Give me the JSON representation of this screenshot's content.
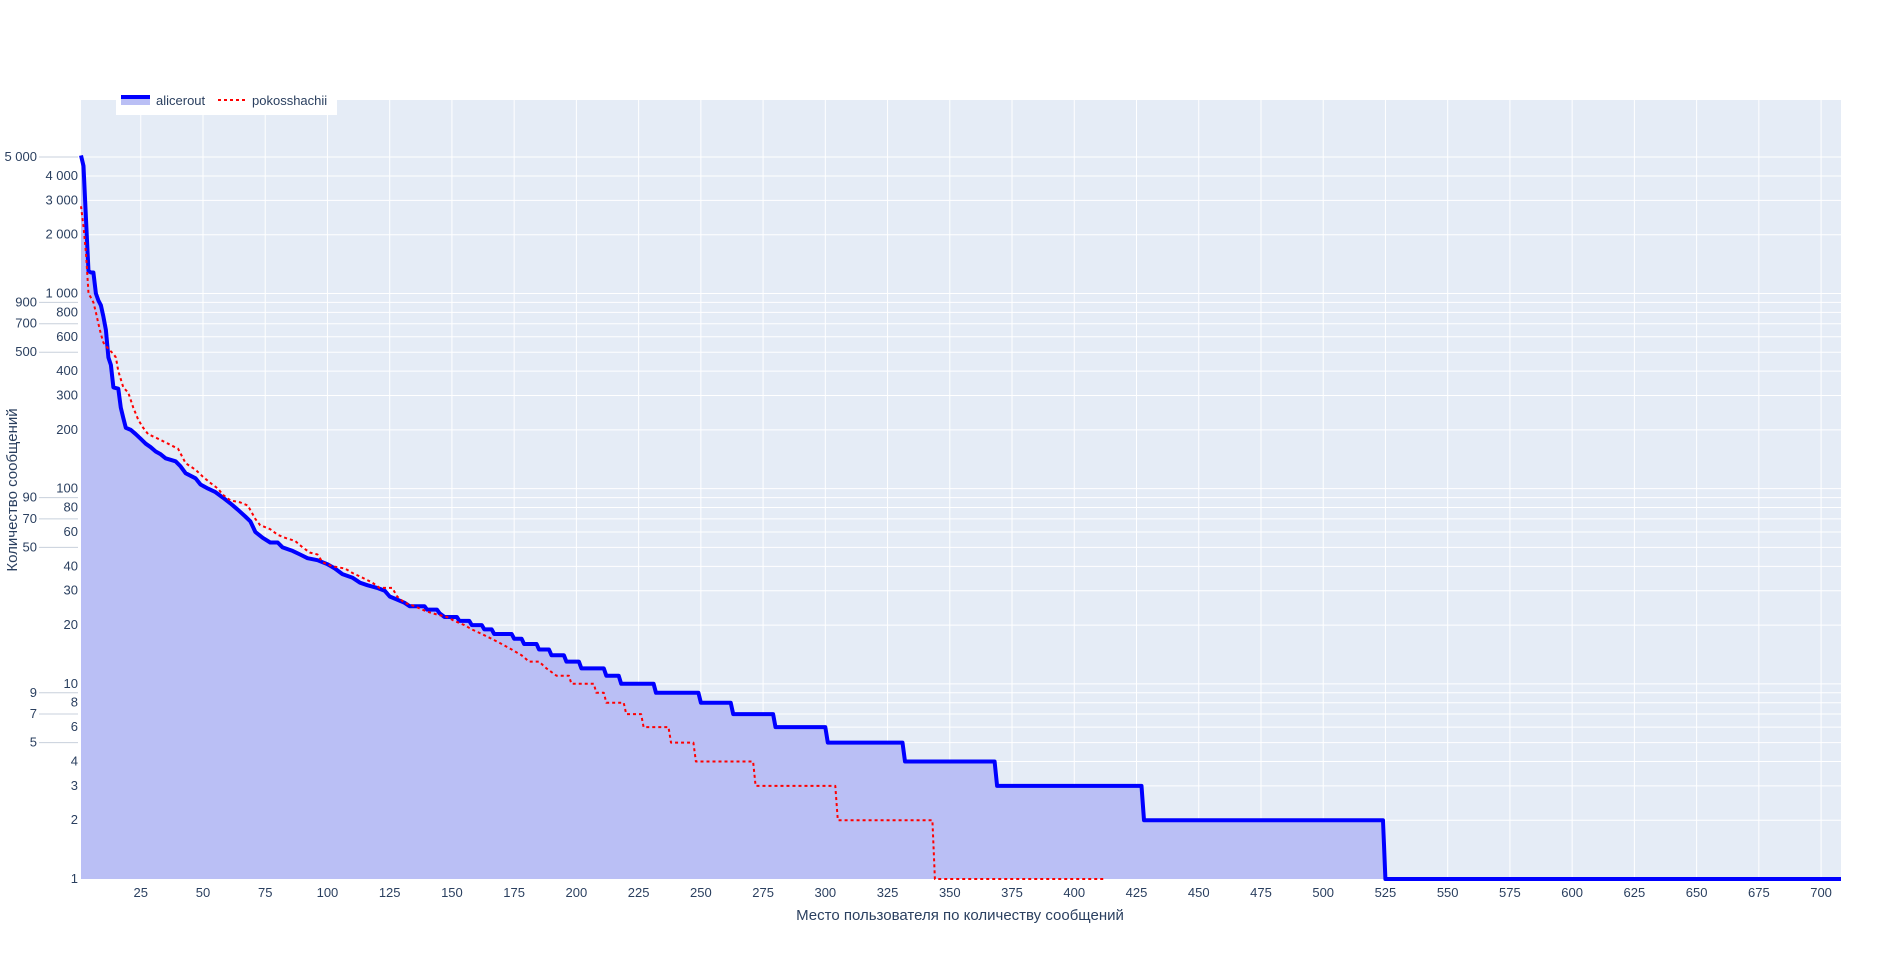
{
  "chart_data": {
    "type": "line",
    "title": "",
    "xlabel": "Место пользователя по количеству сообщений",
    "ylabel": "Количество сообщений",
    "xlim": [
      1,
      708
    ],
    "ylim": [
      1,
      9800
    ],
    "yscale": "log",
    "grid": true,
    "legend_position": "top-left",
    "x_ticks": [
      "25",
      "50",
      "75",
      "100",
      "125",
      "150",
      "175",
      "200",
      "225",
      "250",
      "275",
      "300",
      "325",
      "350",
      "375",
      "400",
      "425",
      "450",
      "475",
      "500",
      "525",
      "550",
      "575",
      "600",
      "625",
      "650",
      "675",
      "700"
    ],
    "y_ticks": [
      {
        "value": 1,
        "label": "1"
      },
      {
        "value": 2,
        "label": "2"
      },
      {
        "value": 3,
        "label": "3"
      },
      {
        "value": 4,
        "label": "4"
      },
      {
        "value": 5,
        "label": "5"
      },
      {
        "value": 6,
        "label": "6"
      },
      {
        "value": 7,
        "label": "7"
      },
      {
        "value": 8,
        "label": "8"
      },
      {
        "value": 9,
        "label": "9"
      },
      {
        "value": 10,
        "label": "10"
      },
      {
        "value": 20,
        "label": "20"
      },
      {
        "value": 30,
        "label": "30"
      },
      {
        "value": 40,
        "label": "40"
      },
      {
        "value": 50,
        "label": "50"
      },
      {
        "value": 60,
        "label": "60"
      },
      {
        "value": 70,
        "label": "70"
      },
      {
        "value": 80,
        "label": "80"
      },
      {
        "value": 90,
        "label": "90"
      },
      {
        "value": 100,
        "label": "100"
      },
      {
        "value": 200,
        "label": "200"
      },
      {
        "value": 300,
        "label": "300"
      },
      {
        "value": 400,
        "label": "400"
      },
      {
        "value": 500,
        "label": "500"
      },
      {
        "value": 600,
        "label": "600"
      },
      {
        "value": 700,
        "label": "700"
      },
      {
        "value": 800,
        "label": "800"
      },
      {
        "value": 900,
        "label": "900"
      },
      {
        "value": 1000,
        "label": "1 000"
      },
      {
        "value": 2000,
        "label": "2 000"
      },
      {
        "value": 3000,
        "label": "3 000"
      },
      {
        "value": 4000,
        "label": "4 000"
      },
      {
        "value": 5000,
        "label": "5 000"
      }
    ],
    "series": [
      {
        "name": "alicerout",
        "color": "#0000ff",
        "fill": "tozeroy",
        "fill_color": "#babff5",
        "line_style": "solid",
        "points": [
          [
            1,
            5100
          ],
          [
            2,
            4500
          ],
          [
            3,
            2400
          ],
          [
            4,
            1300
          ],
          [
            5,
            1280
          ],
          [
            6,
            1280
          ],
          [
            7,
            1000
          ],
          [
            8,
            920
          ],
          [
            9,
            870
          ],
          [
            10,
            760
          ],
          [
            11,
            650
          ],
          [
            12,
            470
          ],
          [
            13,
            430
          ],
          [
            14,
            330
          ],
          [
            16,
            325
          ],
          [
            17,
            260
          ],
          [
            18,
            230
          ],
          [
            19,
            205
          ],
          [
            21,
            200
          ],
          [
            23,
            190
          ],
          [
            25,
            180
          ],
          [
            27,
            170
          ],
          [
            29,
            163
          ],
          [
            31,
            155
          ],
          [
            33,
            150
          ],
          [
            35,
            143
          ],
          [
            39,
            138
          ],
          [
            41,
            130
          ],
          [
            43,
            120
          ],
          [
            47,
            113
          ],
          [
            49,
            105
          ],
          [
            52,
            100
          ],
          [
            55,
            96
          ],
          [
            58,
            90
          ],
          [
            61,
            84
          ],
          [
            64,
            78
          ],
          [
            67,
            72
          ],
          [
            69,
            68
          ],
          [
            70,
            64
          ],
          [
            71,
            60
          ],
          [
            74,
            56
          ],
          [
            77,
            53
          ],
          [
            80,
            53
          ],
          [
            82,
            50
          ],
          [
            86,
            48
          ],
          [
            89,
            46
          ],
          [
            92,
            44
          ],
          [
            96,
            43
          ],
          [
            100,
            41
          ],
          [
            103,
            39
          ],
          [
            106,
            36.5
          ],
          [
            110,
            35
          ],
          [
            113,
            33
          ],
          [
            116,
            32
          ],
          [
            120,
            31
          ],
          [
            123,
            30
          ],
          [
            125,
            28
          ],
          [
            128,
            27
          ],
          [
            131,
            26
          ],
          [
            133,
            25
          ],
          [
            139,
            25
          ],
          [
            140,
            24
          ],
          [
            144,
            24
          ],
          [
            145,
            23
          ],
          [
            147,
            22
          ],
          [
            152,
            22
          ],
          [
            153,
            21
          ],
          [
            157,
            21
          ],
          [
            158,
            20
          ],
          [
            162,
            20
          ],
          [
            163,
            19
          ],
          [
            166,
            19
          ],
          [
            167,
            18
          ],
          [
            174,
            18
          ],
          [
            175,
            17
          ],
          [
            178,
            17
          ],
          [
            179,
            16
          ],
          [
            184,
            16
          ],
          [
            185,
            15
          ],
          [
            189,
            15
          ],
          [
            190,
            14
          ],
          [
            195,
            14
          ],
          [
            196,
            13
          ],
          [
            201,
            13
          ],
          [
            202,
            12
          ],
          [
            211,
            12
          ],
          [
            212,
            11
          ],
          [
            217,
            11
          ],
          [
            218,
            10
          ],
          [
            231,
            10
          ],
          [
            232,
            9
          ],
          [
            249,
            9
          ],
          [
            250,
            8
          ],
          [
            262,
            8
          ],
          [
            263,
            7
          ],
          [
            279,
            7
          ],
          [
            280,
            6
          ],
          [
            300,
            6
          ],
          [
            301,
            5
          ],
          [
            331,
            5
          ],
          [
            332,
            4
          ],
          [
            368,
            4
          ],
          [
            369,
            3
          ],
          [
            427,
            3
          ],
          [
            428,
            2
          ],
          [
            524,
            2
          ],
          [
            525,
            1
          ],
          [
            708,
            1
          ]
        ]
      },
      {
        "name": "pokosshachii",
        "color": "#ff0000",
        "fill": "none",
        "line_style": "dotted",
        "points": [
          [
            1,
            2800
          ],
          [
            2,
            2200
          ],
          [
            3,
            1600
          ],
          [
            4,
            1000
          ],
          [
            5,
            950
          ],
          [
            6,
            900
          ],
          [
            7,
            800
          ],
          [
            8,
            700
          ],
          [
            9,
            620
          ],
          [
            10,
            560
          ],
          [
            12,
            520
          ],
          [
            14,
            490
          ],
          [
            15,
            470
          ],
          [
            16,
            400
          ],
          [
            18,
            330
          ],
          [
            20,
            310
          ],
          [
            22,
            260
          ],
          [
            24,
            225
          ],
          [
            26,
            205
          ],
          [
            28,
            190
          ],
          [
            32,
            180
          ],
          [
            36,
            170
          ],
          [
            40,
            160
          ],
          [
            43,
            135
          ],
          [
            47,
            125
          ],
          [
            50,
            115
          ],
          [
            53,
            107
          ],
          [
            56,
            100
          ],
          [
            58,
            93
          ],
          [
            61,
            87
          ],
          [
            65,
            85
          ],
          [
            68,
            82
          ],
          [
            71,
            70
          ],
          [
            73,
            65
          ],
          [
            77,
            62
          ],
          [
            80,
            58
          ],
          [
            83,
            56
          ],
          [
            87,
            54
          ],
          [
            90,
            50
          ],
          [
            93,
            47
          ],
          [
            96,
            46
          ],
          [
            98,
            42
          ],
          [
            102,
            40
          ],
          [
            107,
            39
          ],
          [
            110,
            37
          ],
          [
            114,
            35
          ],
          [
            118,
            33
          ],
          [
            121,
            31
          ],
          [
            126,
            31
          ],
          [
            128,
            28
          ],
          [
            131,
            26
          ],
          [
            135,
            25
          ],
          [
            138,
            24
          ],
          [
            142,
            23
          ],
          [
            148,
            22
          ],
          [
            151,
            21
          ],
          [
            155,
            20
          ],
          [
            158,
            19
          ],
          [
            162,
            18
          ],
          [
            166,
            17
          ],
          [
            170,
            16
          ],
          [
            174,
            15
          ],
          [
            178,
            14
          ],
          [
            181,
            13
          ],
          [
            185,
            13
          ],
          [
            188,
            12
          ],
          [
            192,
            11
          ],
          [
            197,
            11
          ],
          [
            198,
            10
          ],
          [
            207,
            10
          ],
          [
            208,
            9
          ],
          [
            211,
            9
          ],
          [
            212,
            8
          ],
          [
            219,
            8
          ],
          [
            220,
            7
          ],
          [
            226,
            7
          ],
          [
            227,
            6
          ],
          [
            237,
            6
          ],
          [
            238,
            5
          ],
          [
            247,
            5
          ],
          [
            248,
            4
          ],
          [
            271,
            4
          ],
          [
            272,
            3
          ],
          [
            304,
            3
          ],
          [
            305,
            2
          ],
          [
            343,
            2
          ],
          [
            344,
            1
          ],
          [
            412,
            1
          ]
        ]
      }
    ]
  }
}
